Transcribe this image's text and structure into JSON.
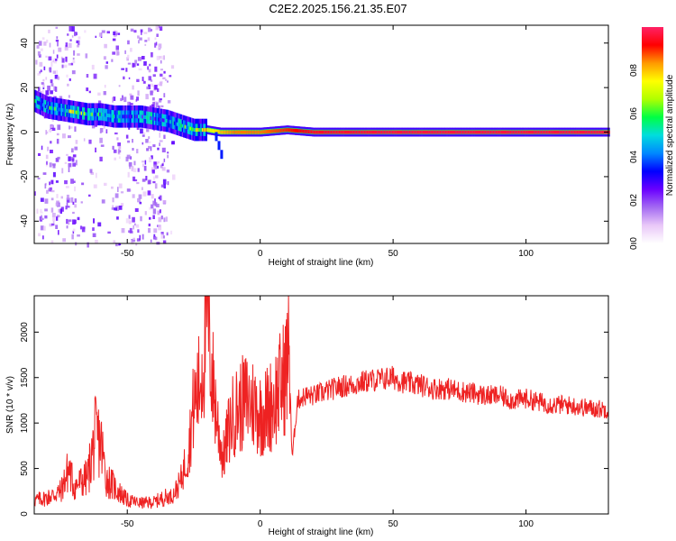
{
  "title": "C2E2.2025.156.21.35.E07",
  "colors": {
    "snr_line": "#ee2222",
    "background": "#ffffff",
    "colormap": [
      "#ffffff",
      "#e9c8f8",
      "#a46af2",
      "#6a00ff",
      "#0000ff",
      "#0088ff",
      "#00dddd",
      "#00ff44",
      "#b0ff00",
      "#ffff00",
      "#ff9900",
      "#ff0000",
      "#ff2266"
    ]
  },
  "chart_data": [
    {
      "type": "heatmap",
      "xlabel": "Height of straight line (km)",
      "ylabel": "Frequency (Hz)",
      "xlim": [
        -85,
        131
      ],
      "ylim": [
        -50,
        48
      ],
      "xticks": [
        -50,
        0,
        50,
        100
      ],
      "xtick_labels": [
        "-50",
        "0",
        "50",
        "100"
      ],
      "yticks": [
        -40,
        -20,
        0,
        20,
        40
      ],
      "ytick_labels": [
        "-40",
        "-20",
        "0",
        "20",
        "40"
      ],
      "colorbar": {
        "label": "Normalized spectral amplitude",
        "range": [
          0,
          1
        ],
        "ticks": [
          0.0,
          0.2,
          0.4,
          0.6,
          0.8
        ],
        "tick_labels": [
          "0.0",
          "0.2",
          "0.4",
          "0.6",
          "0.8"
        ]
      },
      "ridge": [
        {
          "x": -85,
          "freq": 14,
          "amp": 0.45
        },
        {
          "x": -80,
          "freq": 11,
          "amp": 0.45
        },
        {
          "x": -75,
          "freq": 10,
          "amp": 0.55
        },
        {
          "x": -70,
          "freq": 9,
          "amp": 0.62
        },
        {
          "x": -65,
          "freq": 8,
          "amp": 0.55
        },
        {
          "x": -60,
          "freq": 8,
          "amp": 0.45
        },
        {
          "x": -55,
          "freq": 7,
          "amp": 0.4
        },
        {
          "x": -50,
          "freq": 7,
          "amp": 0.4
        },
        {
          "x": -45,
          "freq": 7,
          "amp": 0.4
        },
        {
          "x": -40,
          "freq": 6,
          "amp": 0.4
        },
        {
          "x": -35,
          "freq": 5,
          "amp": 0.45
        },
        {
          "x": -30,
          "freq": 3,
          "amp": 0.5
        },
        {
          "x": -25,
          "freq": 1,
          "amp": 0.6
        },
        {
          "x": -20,
          "freq": 1,
          "amp": 0.72
        },
        {
          "x": -15,
          "freq": 0,
          "amp": 0.8
        },
        {
          "x": -10,
          "freq": 0,
          "amp": 0.85
        },
        {
          "x": 0,
          "freq": 0,
          "amp": 0.85
        },
        {
          "x": 10,
          "freq": 1,
          "amp": 0.9
        },
        {
          "x": 20,
          "freq": 0,
          "amp": 0.95
        },
        {
          "x": 50,
          "freq": 0,
          "amp": 0.97
        },
        {
          "x": 80,
          "freq": 0,
          "amp": 0.97
        },
        {
          "x": 100,
          "freq": 0,
          "amp": 0.97
        },
        {
          "x": 131,
          "freq": 0,
          "amp": 0.97
        }
      ],
      "branch": [
        {
          "x": -17,
          "freq": -2
        },
        {
          "x": -16,
          "freq": -6
        },
        {
          "x": -15,
          "freq": -10
        }
      ],
      "noise_region": [
        -85,
        -33
      ]
    },
    {
      "type": "line",
      "xlabel": "Height of straight line (km)",
      "ylabel": "SNR (10 * v/v)",
      "xlim": [
        -85,
        131
      ],
      "ylim": [
        0,
        2400
      ],
      "xticks": [
        -50,
        0,
        50,
        100
      ],
      "xtick_labels": [
        "-50",
        "0",
        "50",
        "100"
      ],
      "yticks": [
        0,
        500,
        1000,
        1500,
        2000
      ],
      "ytick_labels": [
        "0",
        "500",
        "1000",
        "1500",
        "2000"
      ],
      "series": [
        {
          "color": "#ee2222",
          "x": [
            -85,
            -80,
            -75,
            -72,
            -70,
            -65,
            -62,
            -60,
            -58,
            -55,
            -50,
            -45,
            -40,
            -36,
            -33,
            -30,
            -27,
            -25,
            -23,
            -21,
            -20,
            -19,
            -18,
            -16,
            -14,
            -12,
            -10,
            -7,
            -5,
            -2,
            0,
            3,
            6,
            9,
            11,
            12,
            14,
            17,
            20,
            25,
            30,
            35,
            40,
            45,
            50,
            55,
            60,
            65,
            70,
            75,
            80,
            85,
            90,
            95,
            100,
            105,
            110,
            115,
            120,
            125,
            131
          ],
          "y": [
            150,
            180,
            250,
            500,
            300,
            400,
            850,
            800,
            400,
            300,
            150,
            120,
            130,
            180,
            200,
            350,
            700,
            1200,
            1400,
            1800,
            2350,
            1900,
            1500,
            1000,
            600,
            900,
            1100,
            1200,
            1250,
            1200,
            1100,
            1150,
            1300,
            1500,
            1800,
            600,
            1250,
            1300,
            1300,
            1350,
            1400,
            1420,
            1460,
            1480,
            1500,
            1440,
            1420,
            1380,
            1380,
            1350,
            1330,
            1300,
            1300,
            1250,
            1270,
            1230,
            1200,
            1200,
            1180,
            1160,
            1150
          ]
        }
      ]
    }
  ]
}
